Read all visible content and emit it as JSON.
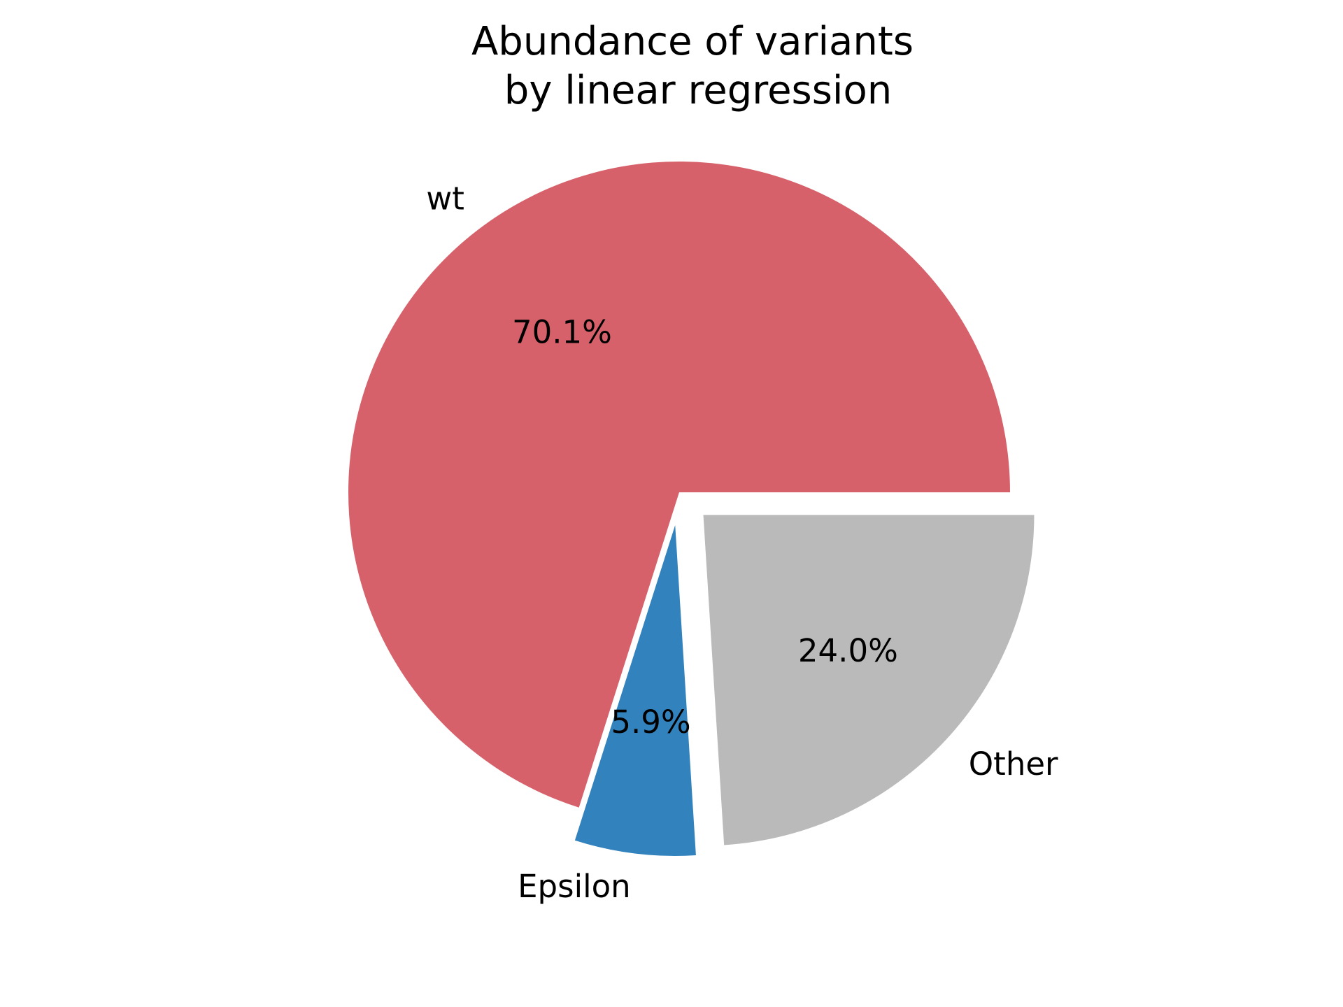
{
  "chart_data": {
    "type": "pie",
    "title_lines": [
      "Abundance of variants",
      "by linear regression"
    ],
    "slices": [
      {
        "label": "wt",
        "value": 70.1,
        "pct_label": "70.1%",
        "color": "#d7616b",
        "exploded": false
      },
      {
        "label": "Epsilon",
        "value": 5.9,
        "pct_label": "5.9%",
        "color": "#3282bd",
        "exploded": true
      },
      {
        "label": "Other",
        "value": 24.0,
        "pct_label": "24.0%",
        "color": "#bababa",
        "exploded": true
      }
    ],
    "start_angle_deg": 0,
    "direction": "counterclockwise",
    "autopct": true
  }
}
